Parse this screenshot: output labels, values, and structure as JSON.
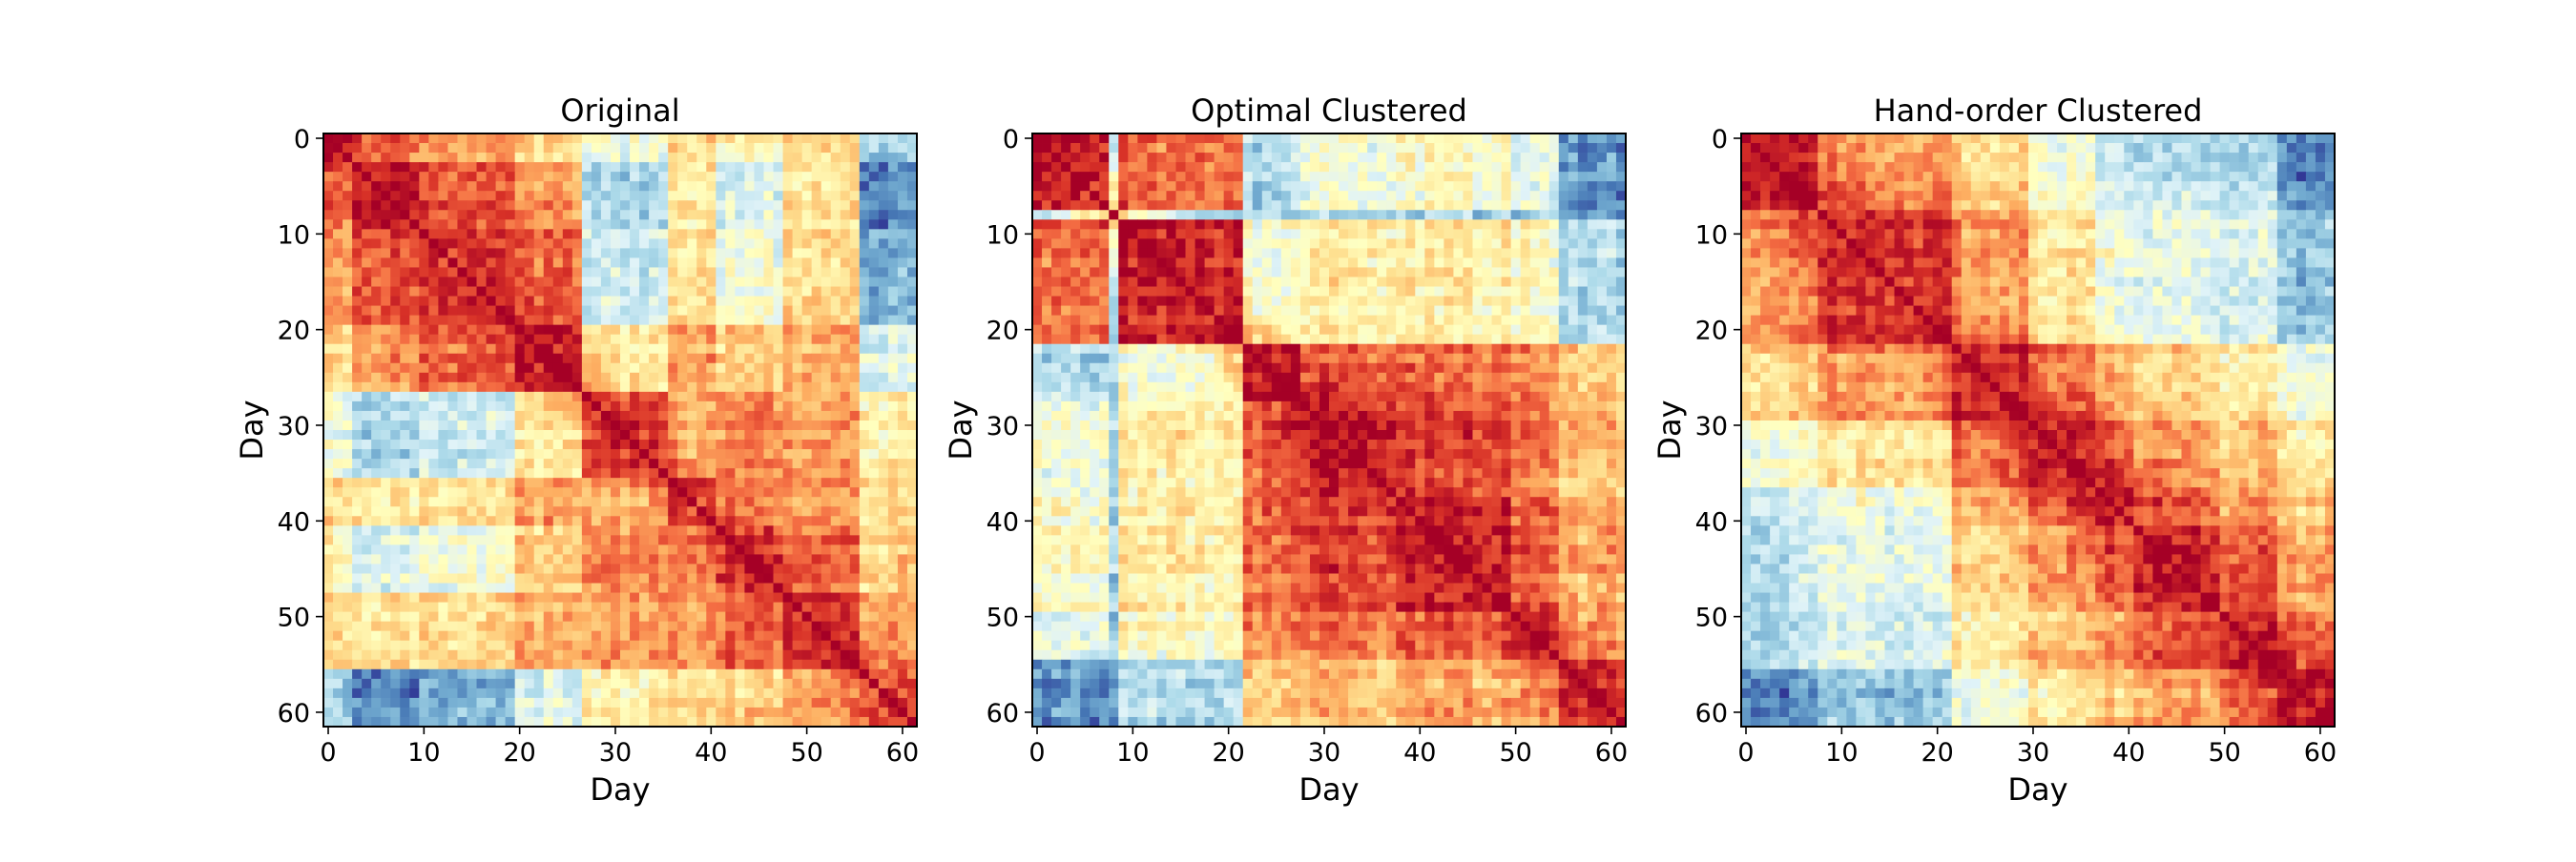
{
  "figure": {
    "panels": [
      {
        "title": "Original",
        "xlabel": "Day",
        "ylabel": "Day"
      },
      {
        "title": "Optimal Clustered",
        "xlabel": "Day",
        "ylabel": "Day"
      },
      {
        "title": "Hand-order Clustered",
        "xlabel": "Day",
        "ylabel": "Day"
      }
    ]
  },
  "chart_data": [
    {
      "type": "heatmap",
      "title": "Original",
      "xlabel": "Day",
      "ylabel": "Day",
      "n": 62,
      "xlim": [
        0,
        61
      ],
      "ylim": [
        0,
        61
      ],
      "xticks": [
        "0",
        "10",
        "20",
        "30",
        "40",
        "50",
        "60"
      ],
      "yticks": [
        "0",
        "10",
        "20",
        "30",
        "40",
        "50",
        "60"
      ],
      "colormap": "RdYlBu_r",
      "colorscale": [
        "#313695",
        "#4575b4",
        "#74add1",
        "#abd9e9",
        "#e0f3f8",
        "#ffffbf",
        "#fee090",
        "#fdae61",
        "#f46d43",
        "#d73027",
        "#a50026"
      ],
      "blocks": [
        0,
        3,
        10,
        20,
        27,
        36,
        41,
        48,
        56,
        62
      ],
      "diag_band": 9,
      "block_base": [
        [
          0.95,
          0.78,
          0.75,
          0.62,
          0.45,
          0.62,
          0.52,
          0.62,
          0.28
        ],
        [
          0.78,
          0.95,
          0.85,
          0.72,
          0.3,
          0.58,
          0.4,
          0.58,
          0.12
        ],
        [
          0.75,
          0.85,
          0.92,
          0.82,
          0.38,
          0.62,
          0.46,
          0.62,
          0.22
        ],
        [
          0.62,
          0.72,
          0.82,
          0.92,
          0.55,
          0.72,
          0.62,
          0.7,
          0.4
        ],
        [
          0.45,
          0.3,
          0.38,
          0.55,
          0.84,
          0.7,
          0.75,
          0.72,
          0.55
        ],
        [
          0.62,
          0.58,
          0.62,
          0.72,
          0.7,
          0.86,
          0.76,
          0.74,
          0.6
        ],
        [
          0.52,
          0.4,
          0.46,
          0.62,
          0.75,
          0.76,
          0.86,
          0.8,
          0.62
        ],
        [
          0.62,
          0.58,
          0.62,
          0.7,
          0.72,
          0.74,
          0.8,
          0.88,
          0.7
        ],
        [
          0.28,
          0.12,
          0.22,
          0.4,
          0.55,
          0.6,
          0.62,
          0.7,
          0.8
        ]
      ]
    },
    {
      "type": "heatmap",
      "title": "Optimal Clustered",
      "xlabel": "Day",
      "ylabel": "Day",
      "n": 62,
      "xlim": [
        0,
        61
      ],
      "ylim": [
        0,
        61
      ],
      "xticks": [
        "0",
        "10",
        "20",
        "30",
        "40",
        "50",
        "60"
      ],
      "yticks": [
        "0",
        "10",
        "20",
        "30",
        "40",
        "50",
        "60"
      ],
      "colormap": "RdYlBu_r",
      "colorscale": [
        "#313695",
        "#4575b4",
        "#74add1",
        "#abd9e9",
        "#e0f3f8",
        "#ffffbf",
        "#fee090",
        "#fdae61",
        "#f46d43",
        "#d73027",
        "#a50026"
      ],
      "blocks": [
        0,
        8,
        9,
        22,
        28,
        38,
        50,
        55,
        62
      ],
      "diag_band": 10,
      "block_base": [
        [
          0.92,
          0.35,
          0.8,
          0.3,
          0.45,
          0.5,
          0.42,
          0.15
        ],
        [
          0.35,
          0.6,
          0.32,
          0.3,
          0.3,
          0.3,
          0.3,
          0.15
        ],
        [
          0.8,
          0.32,
          0.92,
          0.45,
          0.55,
          0.55,
          0.5,
          0.3
        ],
        [
          0.3,
          0.3,
          0.45,
          0.92,
          0.82,
          0.8,
          0.75,
          0.62
        ],
        [
          0.45,
          0.3,
          0.55,
          0.82,
          0.92,
          0.85,
          0.78,
          0.65
        ],
        [
          0.5,
          0.3,
          0.55,
          0.8,
          0.85,
          0.92,
          0.82,
          0.7
        ],
        [
          0.42,
          0.3,
          0.5,
          0.75,
          0.78,
          0.82,
          0.92,
          0.72
        ],
        [
          0.15,
          0.15,
          0.3,
          0.62,
          0.65,
          0.7,
          0.72,
          0.88
        ]
      ]
    },
    {
      "type": "heatmap",
      "title": "Hand-order Clustered",
      "xlabel": "Day",
      "ylabel": "Day",
      "n": 62,
      "xlim": [
        0,
        61
      ],
      "ylim": [
        0,
        61
      ],
      "xticks": [
        "0",
        "10",
        "20",
        "30",
        "40",
        "50",
        "60"
      ],
      "yticks": [
        "0",
        "10",
        "20",
        "30",
        "40",
        "50",
        "60"
      ],
      "colormap": "RdYlBu_r",
      "colorscale": [
        "#313695",
        "#4575b4",
        "#74add1",
        "#abd9e9",
        "#e0f3f8",
        "#ffffbf",
        "#fee090",
        "#fdae61",
        "#f46d43",
        "#d73027",
        "#a50026"
      ],
      "blocks": [
        0,
        8,
        22,
        30,
        37,
        41,
        50,
        56,
        62
      ],
      "diag_band": 12,
      "block_base": [
        [
          0.9,
          0.74,
          0.62,
          0.46,
          0.36,
          0.32,
          0.3,
          0.12
        ],
        [
          0.74,
          0.9,
          0.74,
          0.58,
          0.46,
          0.42,
          0.4,
          0.25
        ],
        [
          0.62,
          0.74,
          0.9,
          0.8,
          0.7,
          0.62,
          0.56,
          0.45
        ],
        [
          0.46,
          0.58,
          0.8,
          0.92,
          0.82,
          0.72,
          0.65,
          0.55
        ],
        [
          0.36,
          0.46,
          0.7,
          0.82,
          0.9,
          0.8,
          0.72,
          0.62
        ],
        [
          0.32,
          0.42,
          0.62,
          0.72,
          0.8,
          0.9,
          0.8,
          0.7
        ],
        [
          0.3,
          0.4,
          0.56,
          0.65,
          0.72,
          0.8,
          0.9,
          0.78
        ],
        [
          0.12,
          0.25,
          0.45,
          0.55,
          0.62,
          0.7,
          0.78,
          0.92
        ]
      ]
    }
  ]
}
